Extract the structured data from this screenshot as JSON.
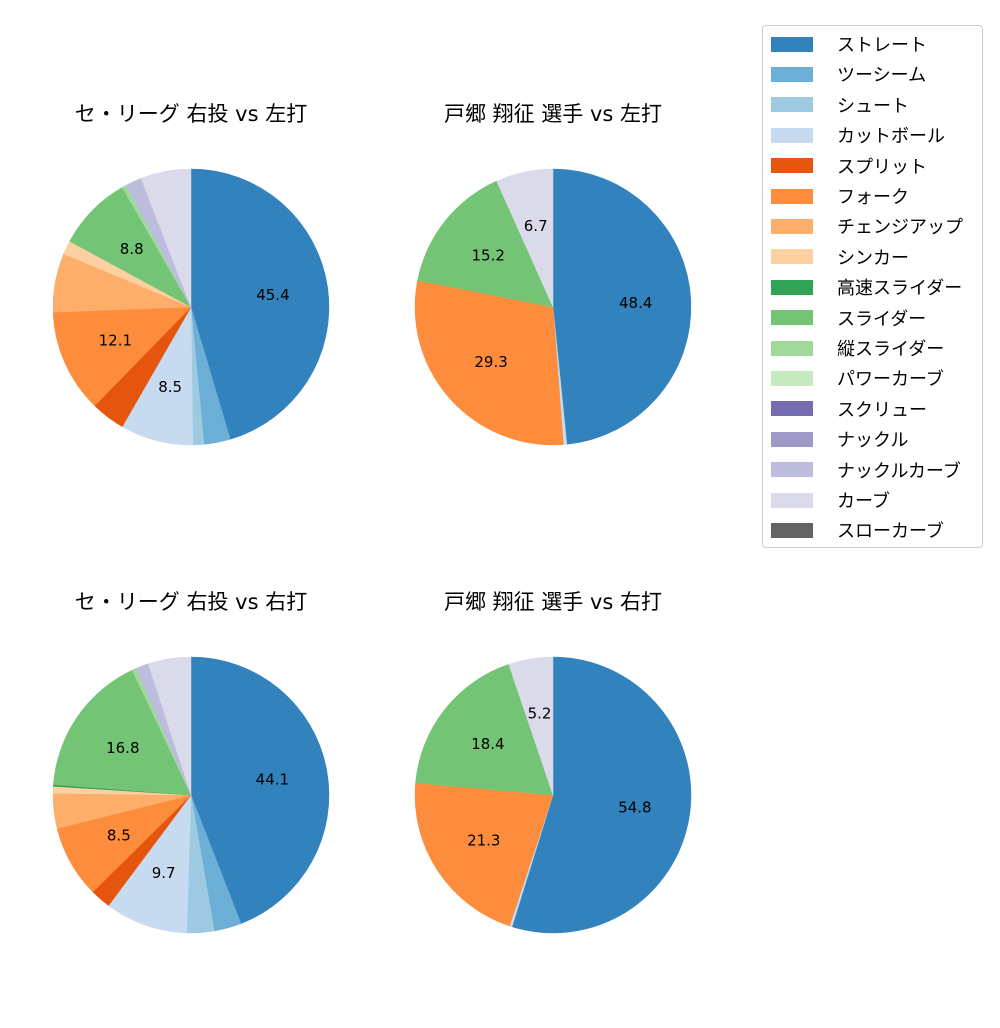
{
  "legend": {
    "items": [
      {
        "label": "ストレート",
        "color": "#3182bd"
      },
      {
        "label": "ツーシーム",
        "color": "#6baed6"
      },
      {
        "label": "シュート",
        "color": "#9ecae1"
      },
      {
        "label": "カットボール",
        "color": "#c6dbef"
      },
      {
        "label": "スプリット",
        "color": "#e6550d"
      },
      {
        "label": "フォーク",
        "color": "#fd8d3c"
      },
      {
        "label": "チェンジアップ",
        "color": "#fdae6b"
      },
      {
        "label": "シンカー",
        "color": "#fdd0a2"
      },
      {
        "label": "高速スライダー",
        "color": "#31a354"
      },
      {
        "label": "スライダー",
        "color": "#74c476"
      },
      {
        "label": "縦スライダー",
        "color": "#a1d99b"
      },
      {
        "label": "パワーカーブ",
        "color": "#c7e9c0"
      },
      {
        "label": "スクリュー",
        "color": "#756bb1"
      },
      {
        "label": "ナックル",
        "color": "#9e9ac8"
      },
      {
        "label": "ナックルカーブ",
        "color": "#bcbddc"
      },
      {
        "label": "カーブ",
        "color": "#dadaeb"
      },
      {
        "label": "スローカーブ",
        "color": "#636363"
      }
    ]
  },
  "chart_data": [
    {
      "type": "pie",
      "title": "セ・リーグ 右投 vs 左打",
      "categories": [
        "ストレート",
        "ツーシーム",
        "シュート",
        "カットボール",
        "スプリット",
        "フォーク",
        "チェンジアップ",
        "シンカー",
        "スライダー",
        "縦スライダー",
        "ナックルカーブ",
        "カーブ"
      ],
      "values": [
        45.4,
        3.1,
        1.3,
        8.5,
        4.0,
        12.1,
        6.9,
        1.6,
        8.8,
        0.5,
        1.9,
        5.9
      ],
      "labels_shown": [
        "45.4",
        "",
        "",
        "8.5",
        "",
        "12.1",
        "",
        "",
        "8.8",
        "",
        "",
        ""
      ],
      "start_angle": 90,
      "direction": "clockwise"
    },
    {
      "type": "pie",
      "title": "戸郷 翔征 選手 vs 左打",
      "categories": [
        "ストレート",
        "カットボール",
        "フォーク",
        "スライダー",
        "カーブ"
      ],
      "values": [
        48.4,
        0.4,
        29.3,
        15.2,
        6.7
      ],
      "labels_shown": [
        "48.4",
        "",
        "29.3",
        "15.2",
        "6.7"
      ],
      "start_angle": 90,
      "direction": "clockwise"
    },
    {
      "type": "pie",
      "title": "セ・リーグ 右投 vs 右打",
      "categories": [
        "ストレート",
        "ツーシーム",
        "シュート",
        "カットボール",
        "スプリット",
        "フォーク",
        "チェンジアップ",
        "シンカー",
        "高速スライダー",
        "スライダー",
        "縦スライダー",
        "ナックルカーブ",
        "カーブ"
      ],
      "values": [
        44.1,
        3.2,
        3.2,
        9.7,
        2.4,
        8.5,
        4.1,
        0.8,
        0.2,
        16.8,
        0.5,
        1.5,
        5.0
      ],
      "labels_shown": [
        "44.1",
        "",
        "",
        "9.7",
        "",
        "8.5",
        "",
        "",
        "",
        "16.8",
        "",
        "",
        ""
      ],
      "start_angle": 90,
      "direction": "clockwise"
    },
    {
      "type": "pie",
      "title": "戸郷 翔征 選手 vs 右打",
      "categories": [
        "ストレート",
        "カットボール",
        "フォーク",
        "スライダー",
        "カーブ"
      ],
      "values": [
        54.8,
        0.3,
        21.3,
        18.4,
        5.2
      ],
      "labels_shown": [
        "54.8",
        "",
        "21.3",
        "18.4",
        "5.2"
      ],
      "start_angle": 90,
      "direction": "clockwise"
    }
  ]
}
